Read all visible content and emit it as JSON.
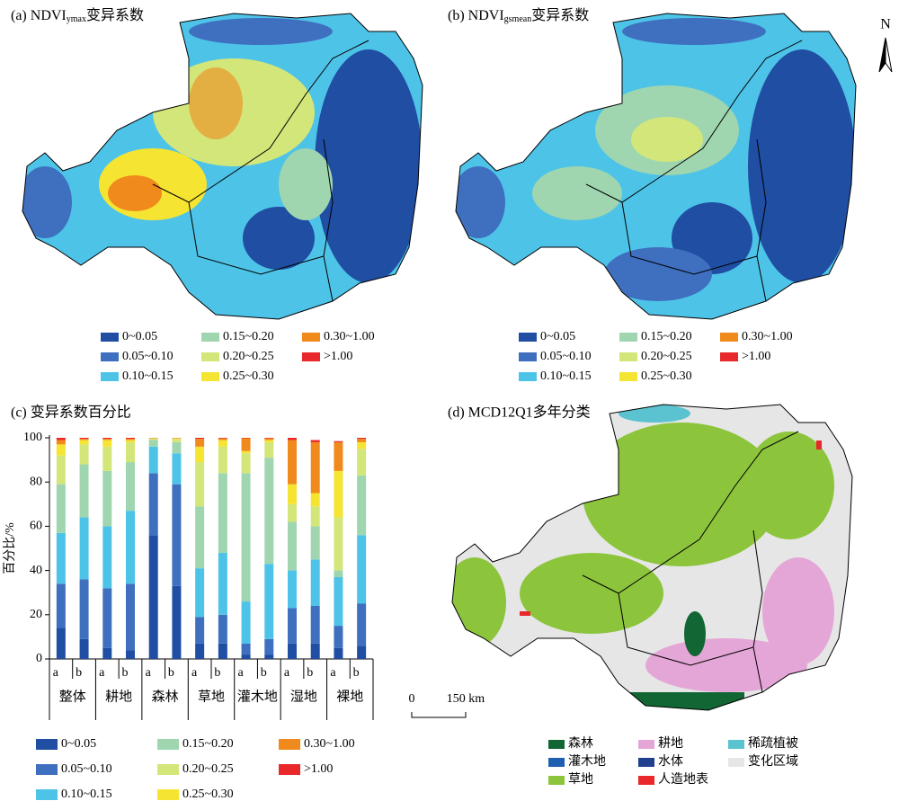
{
  "panel_a": {
    "title_prefix": "(a) NDVI",
    "title_sub": "ymax",
    "title_suffix": "变异系数",
    "legend": [
      {
        "name": "0~0.05",
        "color": "#1f4ea3"
      },
      {
        "name": "0.05~0.10",
        "color": "#3f6fbf"
      },
      {
        "name": "0.10~0.15",
        "color": "#4ec3e8"
      },
      {
        "name": "0.15~0.20",
        "color": "#9fd6b0"
      },
      {
        "name": "0.20~0.25",
        "color": "#d3e67a"
      },
      {
        "name": "0.25~0.30",
        "color": "#f5e532"
      },
      {
        "name": "0.30~1.00",
        "color": "#f08a1c"
      },
      {
        "name": ">1.00",
        "color": "#e8282a"
      }
    ]
  },
  "panel_b": {
    "title_prefix": "(b) NDVI",
    "title_sub": "gsmean",
    "title_suffix": "变异系数",
    "north": "N",
    "legend": [
      {
        "name": "0~0.05",
        "color": "#1f4ea3"
      },
      {
        "name": "0.05~0.10",
        "color": "#3f6fbf"
      },
      {
        "name": "0.10~0.15",
        "color": "#4ec3e8"
      },
      {
        "name": "0.15~0.20",
        "color": "#9fd6b0"
      },
      {
        "name": "0.20~0.25",
        "color": "#d3e67a"
      },
      {
        "name": "0.25~0.30",
        "color": "#f5e532"
      },
      {
        "name": "0.30~1.00",
        "color": "#f08a1c"
      },
      {
        "name": ">1.00",
        "color": "#e8282a"
      }
    ]
  },
  "chart_data": {
    "type": "bar",
    "stacked": true,
    "title": "(c) 变异系数百分比",
    "y_label": "百分比/%",
    "categories": [
      "a",
      "b",
      "a",
      "b",
      "a",
      "b",
      "a",
      "b",
      "a",
      "b",
      "a",
      "b",
      "a",
      "b"
    ],
    "groups": [
      "整体",
      "耕地",
      "森林",
      "草地",
      "灌木地",
      "湿地",
      "裸地"
    ],
    "ylim": [
      0,
      100
    ],
    "yticks": [
      0,
      20,
      40,
      60,
      80,
      100
    ],
    "series": [
      {
        "name": "0~0.05",
        "color": "#1f4ea3",
        "values": [
          14,
          9,
          5,
          4,
          56,
          33,
          7,
          7,
          2,
          2,
          7,
          7,
          5,
          6
        ]
      },
      {
        "name": "0.05~0.10",
        "color": "#3f6fbf",
        "values": [
          20,
          27,
          27,
          30,
          28,
          46,
          12,
          13,
          5,
          7,
          16,
          17,
          10,
          19
        ]
      },
      {
        "name": "0.10~0.15",
        "color": "#4ec3e8",
        "values": [
          23,
          28,
          28,
          33,
          12,
          14,
          22,
          28,
          19,
          34,
          17,
          21,
          22,
          31
        ]
      },
      {
        "name": "0.15~0.20",
        "color": "#9fd6b0",
        "values": [
          22,
          24,
          25,
          22,
          3,
          5,
          28,
          36,
          58,
          48,
          22,
          15,
          3,
          27
        ]
      },
      {
        "name": "0.20~0.25",
        "color": "#d3e67a",
        "values": [
          13,
          9,
          11,
          9,
          0.5,
          1.5,
          20,
          12,
          9,
          7,
          8,
          9,
          24,
          12
        ]
      },
      {
        "name": "0.25~0.30",
        "color": "#f5e532",
        "values": [
          5,
          2,
          3,
          1,
          0.3,
          0.3,
          7,
          3,
          1,
          1,
          9,
          6,
          21,
          3
        ]
      },
      {
        "name": "0.30~1.00",
        "color": "#f08a1c",
        "values": [
          2,
          0.5,
          0.5,
          0.5,
          0.1,
          0.1,
          3.5,
          0.7,
          5.8,
          0.7,
          20,
          23,
          13,
          1.5
        ]
      },
      {
        "name": ">1.00",
        "color": "#e8282a",
        "values": [
          1,
          0.5,
          0.5,
          0.5,
          0.1,
          0.1,
          0.5,
          0.3,
          0.2,
          0.3,
          1,
          1,
          0.5,
          0.5
        ]
      }
    ]
  },
  "panel_d": {
    "title": "(d) MCD12Q1多年分类",
    "scale_labels": [
      "0",
      "150 km"
    ],
    "legend": [
      {
        "name": "森林",
        "color": "#116633"
      },
      {
        "name": "灌木地",
        "color": "#1f5fb0"
      },
      {
        "name": "草地",
        "color": "#8cc43c"
      },
      {
        "name": "耕地",
        "color": "#e4a6d6"
      },
      {
        "name": "水体",
        "color": "#1f3f8f"
      },
      {
        "name": "人造地表",
        "color": "#e8282a"
      },
      {
        "name": "稀疏植被",
        "color": "#5ac3cf"
      },
      {
        "name": "变化区域",
        "color": "#e6e6e6"
      }
    ]
  }
}
